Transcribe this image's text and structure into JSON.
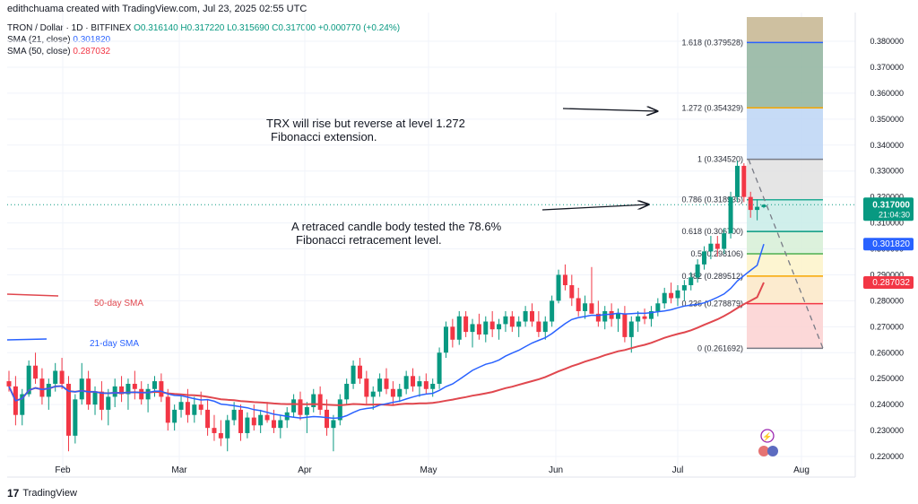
{
  "header": {
    "attribution": "edithchuama created with TradingView.com, Jul 23, 2025 02:55 UTC"
  },
  "legend": {
    "symbol": "TRON / Dollar · 1D · BITFINEX",
    "ohlc": "O0.316140 H0.317220 L0.315690 C0.317000 +0.000770 (+0.24%)",
    "sma21_label": "SMA (21, close)",
    "sma21_value": "0.301820",
    "sma50_label": "SMA (50, close)",
    "sma50_value": "0.287032"
  },
  "footer": {
    "brand": "TradingView",
    "logo": "17"
  },
  "colors": {
    "up": "#089981",
    "down": "#f23645",
    "sma21": "#2962ff",
    "sma50": "#e0474e",
    "accent": "#2962ff"
  },
  "chart_data": {
    "type": "candlestick",
    "y_ticks": [
      "0.380000",
      "0.370000",
      "0.360000",
      "0.350000",
      "0.340000",
      "0.330000",
      "0.320000",
      "0.310000",
      "0.300000",
      "0.290000",
      "0.280000",
      "0.270000",
      "0.260000",
      "0.250000",
      "0.240000",
      "0.230000",
      "0.220000"
    ],
    "ylim": [
      0.218,
      0.388
    ],
    "x_ticks": [
      "Feb",
      "Mar",
      "Apr",
      "May",
      "Jun",
      "Jul",
      "Aug"
    ],
    "last_price": "0.317000",
    "countdown": "21:04:30",
    "sma21_last": "0.301820",
    "sma50_last": "0.287032",
    "fib_levels": [
      {
        "label": "1.618 (0.379528)",
        "value": 0.379528,
        "fill": "#b8a788"
      },
      {
        "label": "1.272 (0.354329)",
        "value": 0.354329,
        "fill": "#8fb39e"
      },
      {
        "label": "1 (0.334520)",
        "value": 0.33452,
        "fill": "#bcd5f4"
      },
      {
        "label": "0.786 (0.318935)",
        "value": 0.318935,
        "fill": "#e1e1e1"
      },
      {
        "label": "0.618 (0.306700)",
        "value": 0.3067,
        "fill": "#c8ece8"
      },
      {
        "label": "0.5 (0.298106)",
        "value": 0.298106,
        "fill": "#d6efd6"
      },
      {
        "label": "0.382 (0.289512)",
        "value": 0.289512,
        "fill": "#fdf3c9"
      },
      {
        "label": "0.236 (0.278879)",
        "value": 0.278879,
        "fill": "#fbe7c7"
      },
      {
        "label": "0 (0.261692)",
        "value": 0.261692,
        "fill": "#fbd1d1"
      }
    ],
    "annotations": {
      "extension_note": [
        "TRX will rise but reverse at level 1.272",
        "Fibonacci extension."
      ],
      "retracement_note": [
        "A retraced candle body tested the 78.6%",
        "Fibonacci retracement level."
      ],
      "sma50_label": "50-day SMA",
      "sma21_label": "21-day SMA"
    }
  }
}
